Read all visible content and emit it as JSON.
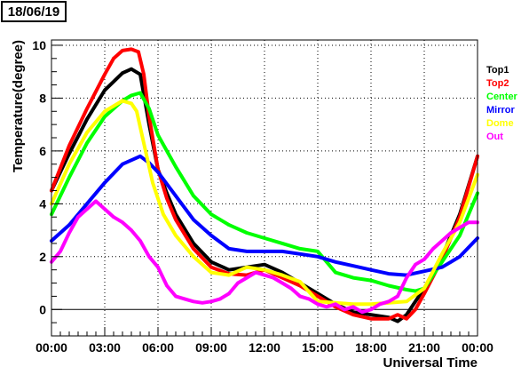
{
  "title": "18/06/19",
  "chart_data": {
    "type": "scatter",
    "xlabel": "Universal Time",
    "ylabel": "Temperature(degree)",
    "xlim": [
      0,
      24
    ],
    "ylim": [
      -1,
      10.2
    ],
    "x_ticks": [
      0,
      3,
      6,
      9,
      12,
      15,
      18,
      21,
      24
    ],
    "x_tick_labels": [
      "00:00",
      "03:00",
      "06:00",
      "09:00",
      "12:00",
      "15:00",
      "18:00",
      "21:00",
      "00:00"
    ],
    "y_ticks": [
      0,
      2,
      4,
      6,
      8,
      10
    ],
    "y_tick_labels": [
      "0",
      "2",
      "4",
      "6",
      "8",
      "10"
    ],
    "grid": true,
    "legend_position": "right",
    "series": [
      {
        "name": "Top1",
        "color": "#000000",
        "x": [
          0,
          1,
          2,
          3,
          4,
          4.5,
          5,
          5.5,
          6,
          6.5,
          7,
          8,
          9,
          10,
          11,
          12,
          13,
          14,
          15,
          16,
          17,
          18,
          19,
          19.5,
          20,
          20.5,
          21,
          22,
          23,
          24
        ],
        "y": [
          4.5,
          5.9,
          7.2,
          8.3,
          8.95,
          9.1,
          8.9,
          7.0,
          5.3,
          4.4,
          3.6,
          2.5,
          1.8,
          1.5,
          1.6,
          1.7,
          1.4,
          1.0,
          0.6,
          0.2,
          -0.1,
          -0.2,
          -0.3,
          -0.45,
          -0.2,
          0.3,
          0.8,
          2.0,
          3.6,
          5.8
        ]
      },
      {
        "name": "Top2",
        "color": "#ff0000",
        "x": [
          0,
          1,
          2,
          3,
          3.5,
          4,
          4.5,
          4.9,
          5.2,
          5.5,
          6,
          6.5,
          7,
          8,
          9,
          10,
          11,
          12,
          13,
          14,
          15,
          16,
          17,
          18,
          19,
          19.5,
          20,
          20.5,
          21,
          22,
          23,
          24
        ],
        "y": [
          4.5,
          6.2,
          7.6,
          8.9,
          9.5,
          9.8,
          9.85,
          9.75,
          8.9,
          7.3,
          5.3,
          4.2,
          3.4,
          2.3,
          1.6,
          1.35,
          1.3,
          1.5,
          1.2,
          0.9,
          0.5,
          0.1,
          -0.2,
          -0.35,
          -0.35,
          -0.2,
          -0.35,
          0.0,
          0.6,
          1.9,
          3.5,
          5.8
        ]
      },
      {
        "name": "Center",
        "color": "#00ff00",
        "x": [
          0,
          1,
          2,
          3,
          4,
          4.5,
          5,
          5.5,
          6,
          7,
          8,
          9,
          10,
          11,
          12,
          13,
          14,
          15,
          16,
          17,
          18,
          19,
          20,
          20.5,
          21,
          22,
          23,
          24
        ],
        "y": [
          3.6,
          5.0,
          6.3,
          7.3,
          7.9,
          8.1,
          8.2,
          7.6,
          6.6,
          5.4,
          4.3,
          3.6,
          3.2,
          2.9,
          2.7,
          2.5,
          2.3,
          2.2,
          1.4,
          1.2,
          1.1,
          0.9,
          0.75,
          0.7,
          0.8,
          1.8,
          2.8,
          4.4
        ]
      },
      {
        "name": "Mirror",
        "color": "#0000ff",
        "x": [
          0,
          1,
          2,
          3,
          4,
          5,
          5.5,
          6,
          7,
          8,
          9,
          10,
          11,
          12,
          13,
          14,
          15,
          16,
          17,
          18,
          19,
          20,
          21,
          22,
          23,
          24
        ],
        "y": [
          2.6,
          3.2,
          4.0,
          4.8,
          5.5,
          5.8,
          5.55,
          5.2,
          4.3,
          3.4,
          2.8,
          2.3,
          2.2,
          2.2,
          2.2,
          2.1,
          2.0,
          1.8,
          1.65,
          1.5,
          1.35,
          1.3,
          1.45,
          1.6,
          2.0,
          2.7
        ]
      },
      {
        "name": "Dome",
        "color": "#ffff00",
        "x": [
          0,
          1,
          2,
          3,
          4,
          4.5,
          4.8,
          5.2,
          5.7,
          6.3,
          7,
          8,
          9,
          10,
          11,
          12,
          13,
          14,
          15,
          16,
          17,
          18,
          19,
          20,
          21,
          22,
          23,
          24
        ],
        "y": [
          4.0,
          5.5,
          6.7,
          7.5,
          7.9,
          7.8,
          7.5,
          6.3,
          4.8,
          3.6,
          2.8,
          2.0,
          1.4,
          1.3,
          1.6,
          1.5,
          1.3,
          1.05,
          0.3,
          0.25,
          0.2,
          0.2,
          0.25,
          0.3,
          0.8,
          2.1,
          3.3,
          5.1
        ]
      },
      {
        "name": "Out",
        "color": "#ff00ff",
        "x": [
          0,
          0.5,
          1,
          1.5,
          2,
          2.5,
          3,
          3.5,
          4,
          4.5,
          5,
          5.5,
          6,
          6.5,
          7,
          7.5,
          8,
          8.5,
          9,
          9.5,
          10,
          10.5,
          11,
          11.5,
          12,
          12.5,
          13,
          13.5,
          14,
          14.5,
          15,
          15.5,
          16,
          16.5,
          17,
          17.5,
          18,
          18.5,
          19,
          19.5,
          20,
          20.5,
          21,
          21.5,
          22,
          22.5,
          23,
          23.5,
          24
        ],
        "y": [
          1.8,
          2.2,
          2.9,
          3.5,
          3.8,
          4.1,
          3.8,
          3.5,
          3.3,
          3.0,
          2.6,
          2.0,
          1.6,
          0.9,
          0.5,
          0.4,
          0.3,
          0.25,
          0.3,
          0.4,
          0.6,
          1.0,
          1.2,
          1.4,
          1.3,
          1.2,
          1.0,
          0.8,
          0.5,
          0.4,
          0.2,
          0.1,
          0.2,
          0.0,
          0.1,
          -0.1,
          0.0,
          0.2,
          0.3,
          0.5,
          1.2,
          1.7,
          1.9,
          2.3,
          2.6,
          2.9,
          3.1,
          3.3,
          3.3
        ]
      }
    ]
  }
}
